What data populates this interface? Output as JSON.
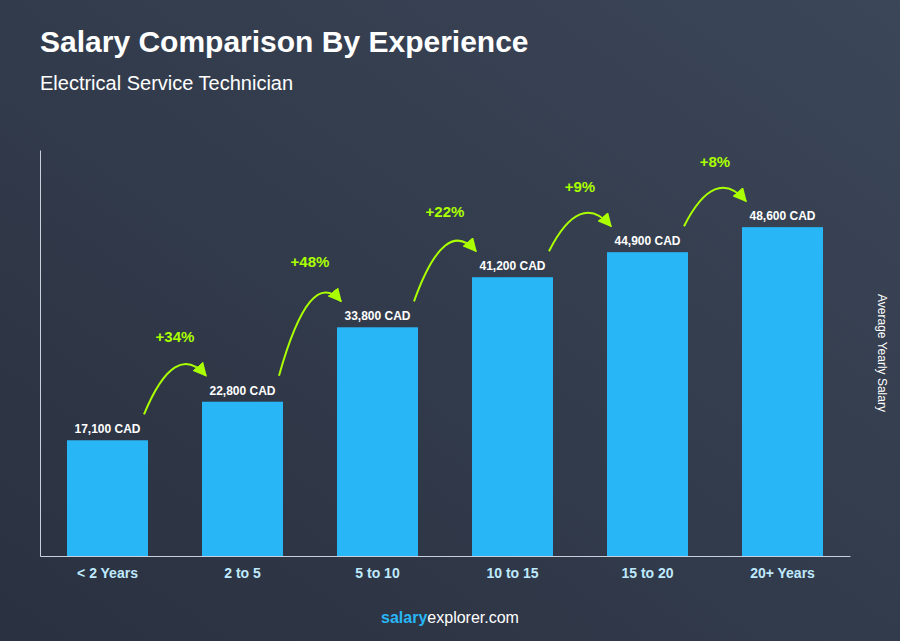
{
  "chart_data": {
    "type": "bar",
    "title": "Salary Comparison By Experience",
    "subtitle": "Electrical Service Technician",
    "categories": [
      "< 2 Years",
      "2 to 5",
      "5 to 10",
      "10 to 15",
      "15 to 20",
      "20+ Years"
    ],
    "values": [
      17100,
      22800,
      33800,
      41200,
      44900,
      48600
    ],
    "value_labels": [
      "17,100 CAD",
      "22,800 CAD",
      "33,800 CAD",
      "41,200 CAD",
      "44,900 CAD",
      "48,600 CAD"
    ],
    "data_labels": true,
    "color": "#29B6F6",
    "annotations": [
      "+34%",
      "+48%",
      "+22%",
      "+9%",
      "+8%"
    ],
    "ylabel": "Average Yearly Salary",
    "watermark": [
      "salary",
      "explorer.com"
    ],
    "ylim": [
      0,
      60000
    ],
    "tick_labels": "x"
  }
}
